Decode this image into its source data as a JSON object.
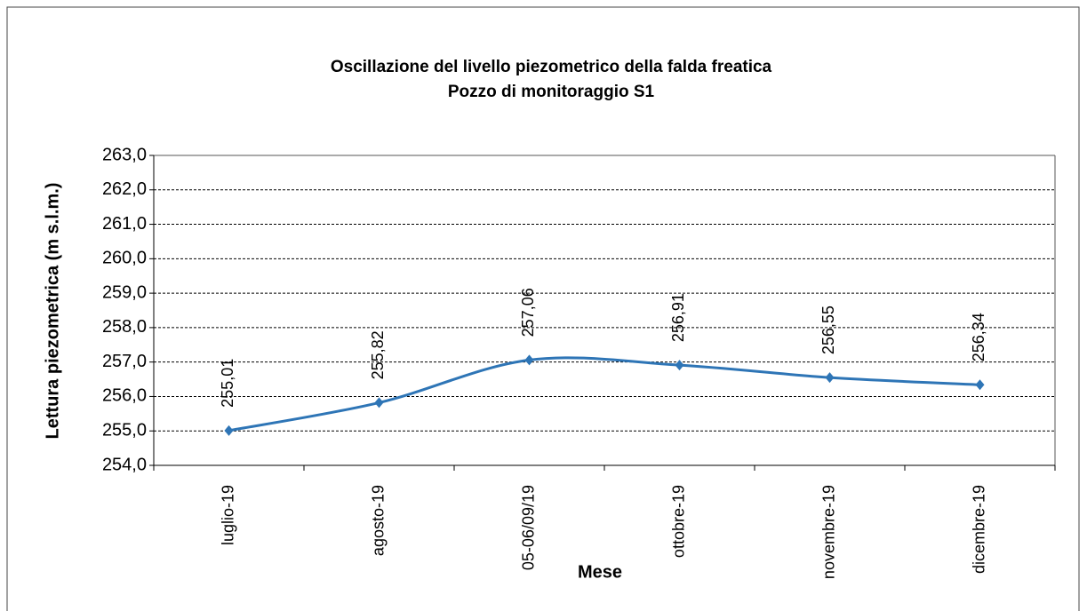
{
  "chart_data": {
    "type": "line",
    "title": "Oscillazione  del livello piezometrico della falda freatica",
    "subtitle": "Pozzo di monitoraggio  S1",
    "x_label": "Mese",
    "y_label": "Lettura piezometrica  (m s.l.m.)",
    "categories": [
      "luglio-19",
      "agosto-19",
      "05-06/09/19",
      "ottobre-19",
      "novembre-19",
      "dicembre-19"
    ],
    "values": [
      255.01,
      255.82,
      257.06,
      256.91,
      256.55,
      256.34
    ],
    "value_labels": [
      "255,01",
      "255,82",
      "257,06",
      "256,91",
      "256,55",
      "256,34"
    ],
    "color": "#2e75b6",
    "smooth": true,
    "grid": true,
    "ylim": [
      254,
      263
    ],
    "yticks": [
      {
        "value": 254,
        "label": "254,0"
      },
      {
        "value": 255,
        "label": "255,0"
      },
      {
        "value": 256,
        "label": "256,0"
      },
      {
        "value": 257,
        "label": "257,0"
      },
      {
        "value": 258,
        "label": "258,0"
      },
      {
        "value": 259,
        "label": "259,0"
      },
      {
        "value": 260,
        "label": "260,0"
      },
      {
        "value": 261,
        "label": "261,0"
      },
      {
        "value": 262,
        "label": "262,0"
      },
      {
        "value": 263,
        "label": "263,0"
      }
    ]
  }
}
